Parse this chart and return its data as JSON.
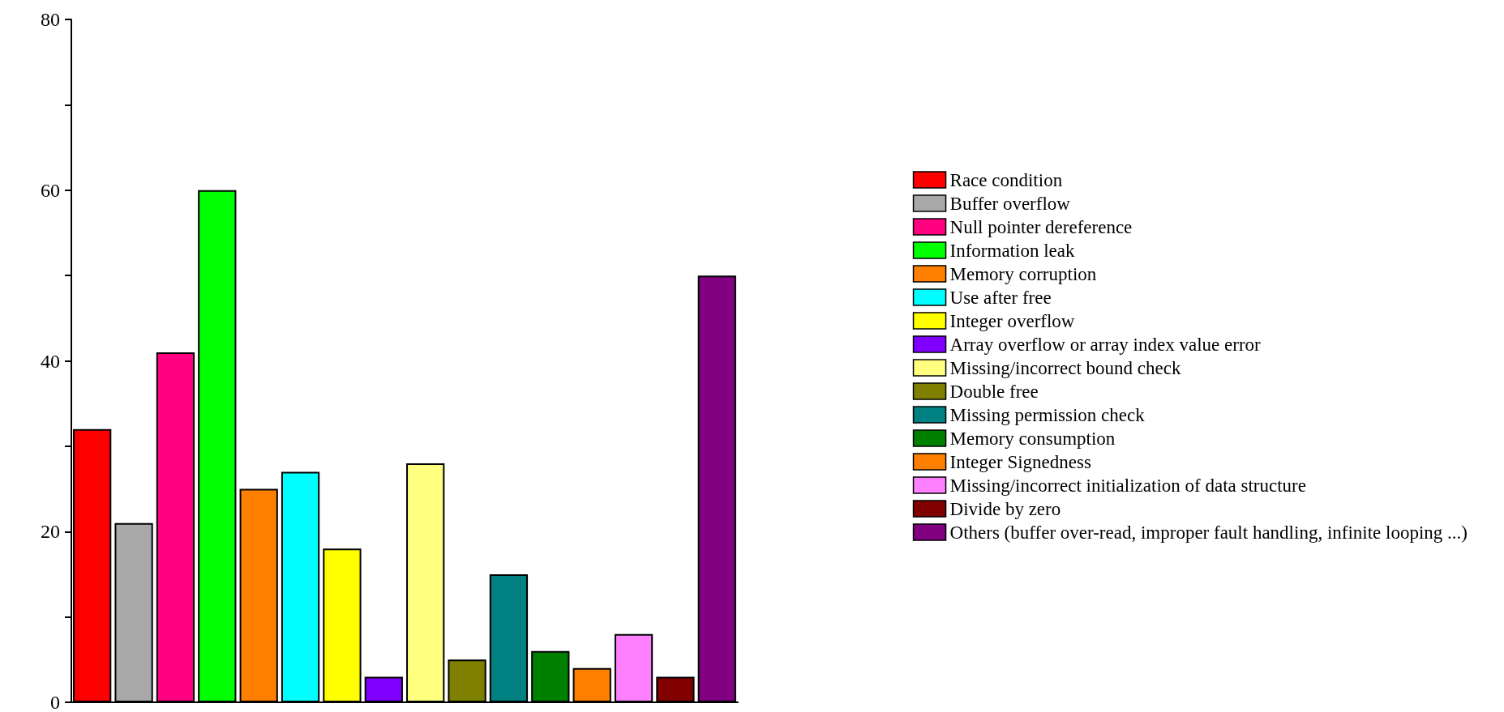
{
  "chart_data": {
    "type": "bar",
    "categories": [
      null,
      null,
      null,
      null,
      null,
      null,
      null,
      null,
      null,
      null,
      null,
      null,
      null,
      null,
      null,
      null
    ],
    "ylim": [
      0,
      80
    ],
    "yticks": [
      0,
      {
        "value": 10,
        "label": null
      },
      20,
      {
        "value": 30,
        "label": null
      },
      40,
      {
        "value": 50,
        "label": null
      },
      60,
      {
        "value": 70,
        "label": null
      },
      80
    ],
    "grid": false,
    "legend": "right",
    "tick_labels": "y",
    "series": [
      {
        "name": "Race condition",
        "color": "#ff0000",
        "values": [
          32,
          null,
          null,
          null,
          null,
          null,
          null,
          null,
          null,
          null,
          null,
          null,
          null,
          null,
          null,
          null
        ]
      },
      {
        "name": "Buffer overflow",
        "color": "#a8a8a8",
        "values": [
          null,
          21,
          null,
          null,
          null,
          null,
          null,
          null,
          null,
          null,
          null,
          null,
          null,
          null,
          null,
          null
        ]
      },
      {
        "name": "Null pointer dereference",
        "color": "#ff0080",
        "values": [
          null,
          null,
          41,
          null,
          null,
          null,
          null,
          null,
          null,
          null,
          null,
          null,
          null,
          null,
          null,
          null
        ]
      },
      {
        "name": "Information leak",
        "color": "#00ff00",
        "values": [
          null,
          null,
          null,
          60,
          null,
          null,
          null,
          null,
          null,
          null,
          null,
          null,
          null,
          null,
          null,
          null
        ]
      },
      {
        "name": "Memory corruption",
        "color": "#ff8000",
        "values": [
          null,
          null,
          null,
          null,
          25,
          null,
          null,
          null,
          null,
          null,
          null,
          null,
          null,
          null,
          null,
          null
        ]
      },
      {
        "name": "Use after free",
        "color": "#00ffff",
        "values": [
          null,
          null,
          null,
          null,
          null,
          27,
          null,
          null,
          null,
          null,
          null,
          null,
          null,
          null,
          null,
          null
        ]
      },
      {
        "name": "Integer overflow",
        "color": "#ffff00",
        "values": [
          null,
          null,
          null,
          null,
          null,
          null,
          18,
          null,
          null,
          null,
          null,
          null,
          null,
          null,
          null,
          null
        ]
      },
      {
        "name": "Array overflow or array index value error",
        "color": "#8000ff",
        "values": [
          null,
          null,
          null,
          null,
          null,
          null,
          null,
          3,
          null,
          null,
          null,
          null,
          null,
          null,
          null,
          null
        ]
      },
      {
        "name": "Missing/incorrect bound check",
        "color": "#ffff80",
        "values": [
          null,
          null,
          null,
          null,
          null,
          null,
          null,
          null,
          28,
          null,
          null,
          null,
          null,
          null,
          null,
          null
        ]
      },
      {
        "name": "Double free",
        "color": "#808000",
        "values": [
          null,
          null,
          null,
          null,
          null,
          null,
          null,
          null,
          null,
          5,
          null,
          null,
          null,
          null,
          null,
          null
        ]
      },
      {
        "name": "Missing permission check",
        "color": "#008080",
        "values": [
          null,
          null,
          null,
          null,
          null,
          null,
          null,
          null,
          null,
          null,
          15,
          null,
          null,
          null,
          null,
          null
        ]
      },
      {
        "name": "Memory consumption",
        "color": "#008000",
        "values": [
          null,
          null,
          null,
          null,
          null,
          null,
          null,
          null,
          null,
          null,
          null,
          6,
          null,
          null,
          null,
          null
        ]
      },
      {
        "name": "Integer Signedness",
        "color": "#ff8000",
        "values": [
          null,
          null,
          null,
          null,
          null,
          null,
          null,
          null,
          null,
          null,
          null,
          null,
          4,
          null,
          null,
          null
        ]
      },
      {
        "name": "Missing/incorrect initialization of data structure",
        "color": "#ff80ff",
        "values": [
          null,
          null,
          null,
          null,
          null,
          null,
          null,
          null,
          null,
          null,
          null,
          null,
          null,
          8,
          null,
          null
        ]
      },
      {
        "name": "Divide by zero",
        "color": "#800000",
        "values": [
          null,
          null,
          null,
          null,
          null,
          null,
          null,
          null,
          null,
          null,
          null,
          null,
          null,
          null,
          3,
          null
        ]
      },
      {
        "name": "Others (buffer over-read, improper fault handling, infinite looping ...)",
        "color": "#800080",
        "values": [
          null,
          null,
          null,
          null,
          null,
          null,
          null,
          null,
          null,
          null,
          null,
          null,
          null,
          null,
          null,
          50
        ]
      }
    ]
  }
}
